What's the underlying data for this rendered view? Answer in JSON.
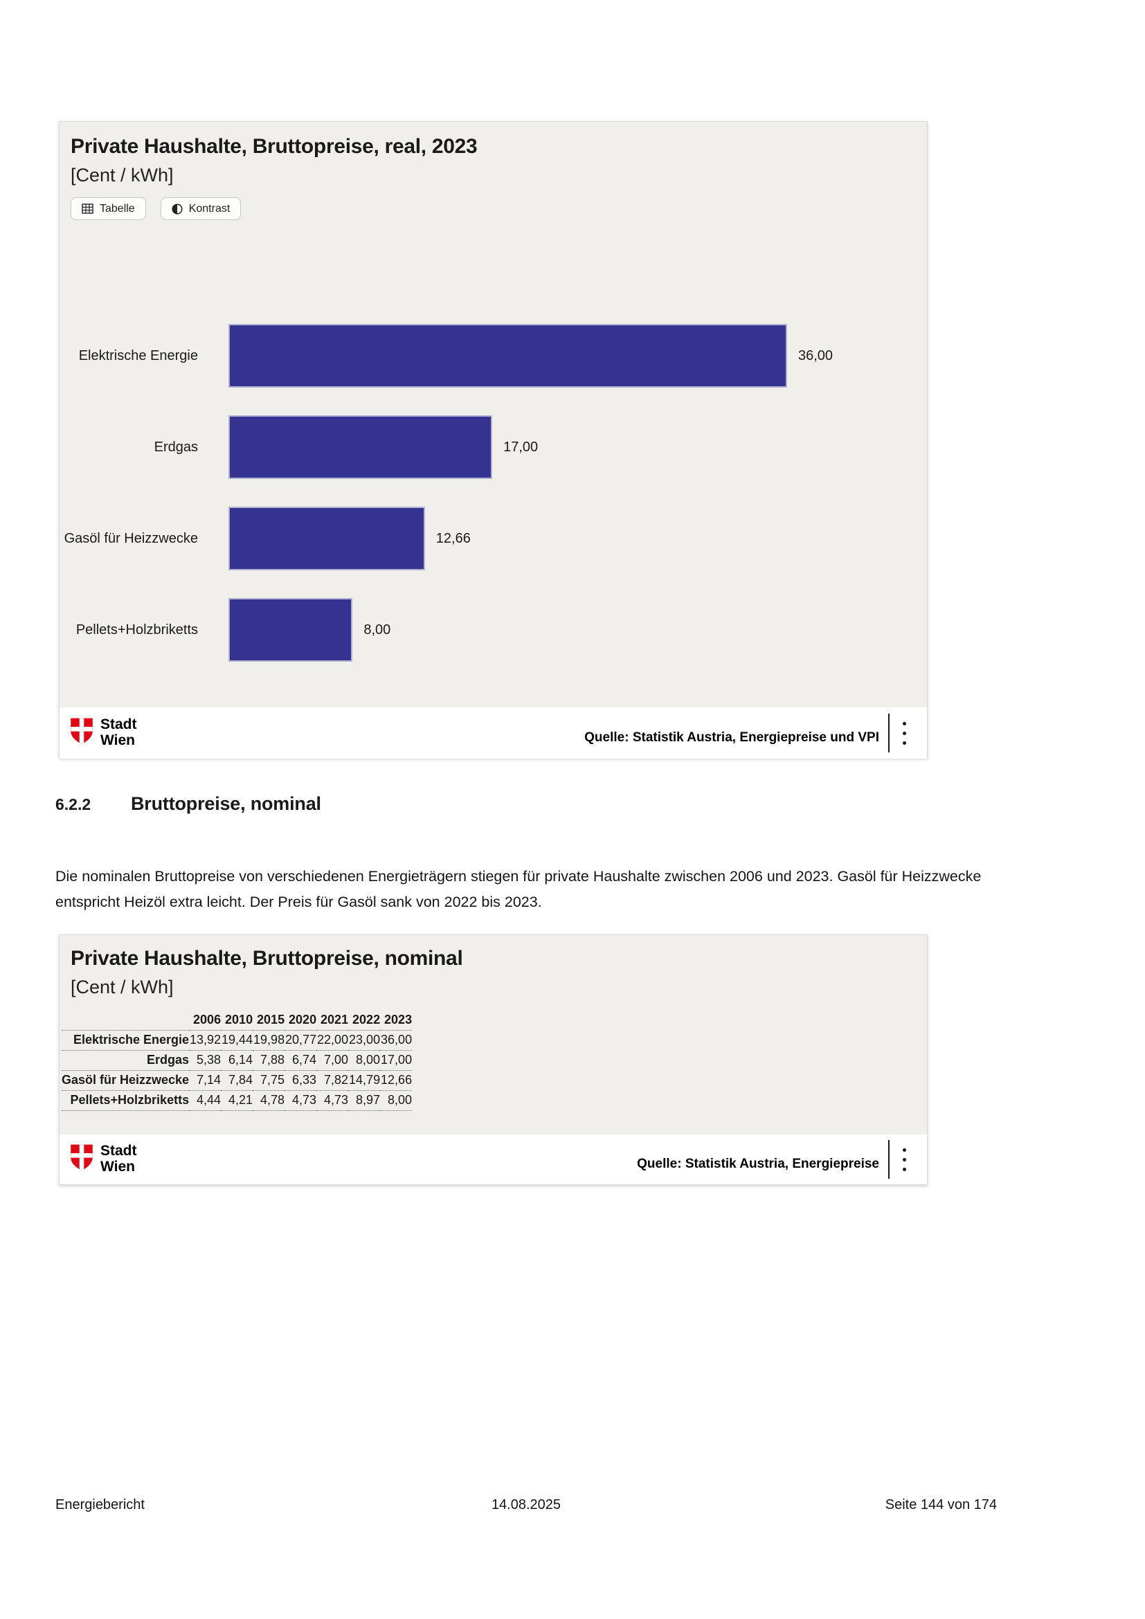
{
  "colors": {
    "bar": "#363390",
    "bar_edge": "#b2b0d4",
    "card_background": "#f0efec",
    "wien_red": "#e30613"
  },
  "real_card": {
    "title": "Private Haushalte, Bruttopreise, real, 2023",
    "unit": "[Cent / kWh]",
    "buttons": {
      "tabelle": "Tabelle",
      "kontrast": "Kontrast"
    },
    "source": "Quelle: Statistik Austria, Energiepreise und VPI",
    "logo": {
      "line1": "Stadt",
      "line2": "Wien"
    }
  },
  "nominal_card": {
    "title": "Private Haushalte, Bruttopreise, nominal",
    "unit": "[Cent / kWh]",
    "source": "Quelle: Statistik Austria, Energiepreise",
    "logo": {
      "line1": "Stadt",
      "line2": "Wien"
    }
  },
  "section": {
    "number": "6.2.2",
    "title": "Bruttopreise, nominal",
    "paragraph": "Die nominalen Bruttopreise von verschiedenen Energieträgern stiegen für private Haushalte zwischen 2006 und 2023. Gasöl für Heizzwecke entspricht Heizöl extra leicht. Der Preis für Gasöl sank von 2022 bis 2023."
  },
  "page_footer": {
    "left": "Energiebericht",
    "center": "14.08.2025",
    "right": "Seite 144 von 174"
  },
  "chart_data": [
    {
      "type": "bar",
      "orientation": "horizontal",
      "title": "Private Haushalte, Bruttopreise, real, 2023",
      "unit": "Cent / kWh",
      "categories": [
        "Elektrische Energie",
        "Erdgas",
        "Gasöl für Heizzwecke",
        "Pellets+Holzbriketts"
      ],
      "values": [
        36.0,
        17.0,
        12.66,
        8.0
      ],
      "value_labels": [
        "36,00",
        "17,00",
        "12,66",
        "8,00"
      ],
      "xlim": [
        0,
        36
      ],
      "grid": false,
      "bar_color": "#363390"
    },
    {
      "type": "table",
      "title": "Private Haushalte, Bruttopreise, nominal",
      "unit": "Cent / kWh",
      "columns": [
        "2006",
        "2010",
        "2015",
        "2020",
        "2021",
        "2022",
        "2023"
      ],
      "rows": [
        {
          "label": "Elektrische Energie",
          "values": [
            "13,92",
            "19,44",
            "19,98",
            "20,77",
            "22,00",
            "23,00",
            "36,00"
          ]
        },
        {
          "label": "Erdgas",
          "values": [
            "5,38",
            "6,14",
            "7,88",
            "6,74",
            "7,00",
            "8,00",
            "17,00"
          ]
        },
        {
          "label": "Gasöl für Heizzwecke",
          "values": [
            "7,14",
            "7,84",
            "7,75",
            "6,33",
            "7,82",
            "14,79",
            "12,66"
          ]
        },
        {
          "label": "Pellets+Holzbriketts",
          "values": [
            "4,44",
            "4,21",
            "4,78",
            "4,73",
            "4,73",
            "8,97",
            "8,00"
          ]
        }
      ]
    }
  ]
}
